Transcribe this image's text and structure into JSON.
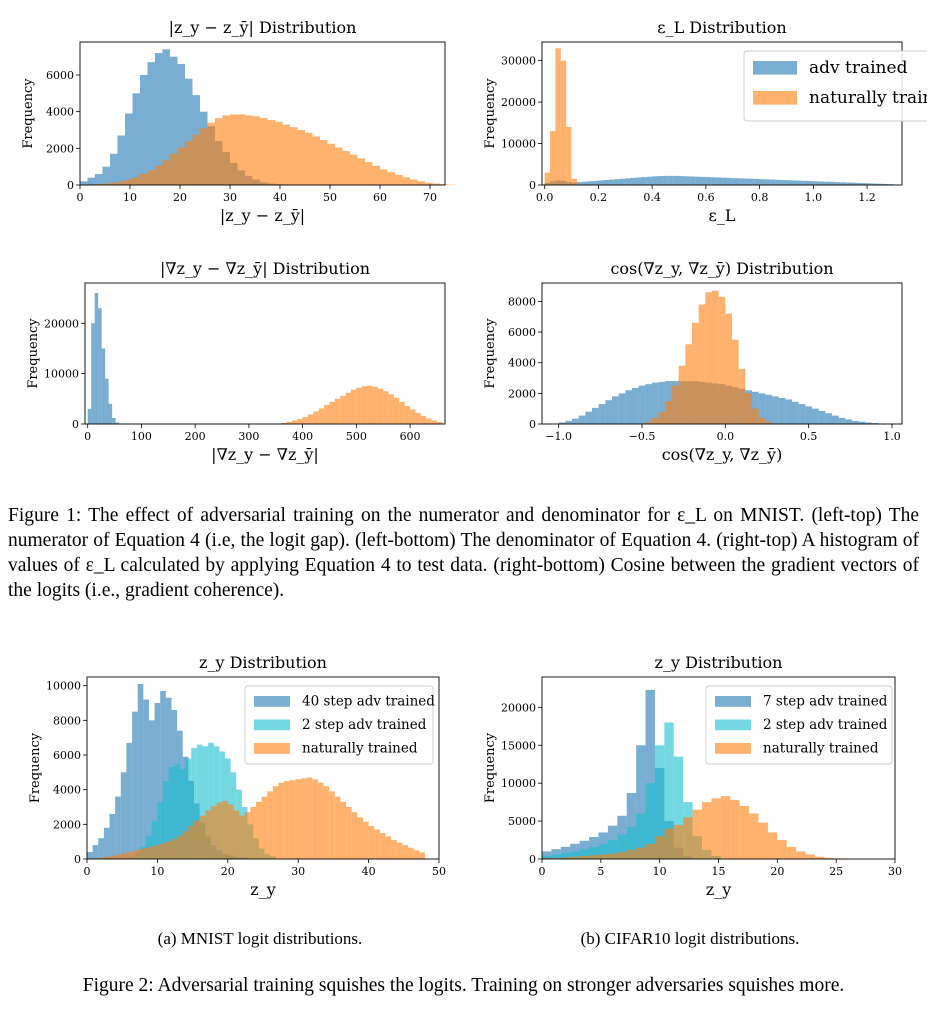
{
  "chart_data": [
    {
      "type": "histogram",
      "title": "|z_y − z_ȳ| Distribution",
      "xlabel": "|z_y − z_ȳ|",
      "ylabel": "Frequency",
      "xlim": [
        0,
        73
      ],
      "ylim": [
        0,
        7800
      ],
      "xticks": [
        0,
        10,
        20,
        30,
        40,
        50,
        60,
        70
      ],
      "yticks": [
        0,
        2000,
        4000,
        6000
      ],
      "legend": "none",
      "series": [
        {
          "name": "",
          "color": "#1f77b4",
          "alpha": 0.6,
          "bin_start": 0,
          "bin_width": 1.5,
          "values": [
            200,
            400,
            600,
            1000,
            1700,
            2700,
            3900,
            5000,
            6000,
            6700,
            7200,
            7400,
            7000,
            6600,
            5800,
            4900,
            4000,
            3200,
            2400,
            1800,
            1200,
            800,
            500,
            300,
            150,
            80,
            40,
            20,
            10
          ]
        },
        {
          "name": "",
          "color": "#ff7f0e",
          "alpha": 0.6,
          "bin_start": 0,
          "bin_width": 1.5,
          "values": [
            20,
            30,
            50,
            80,
            130,
            200,
            300,
            420,
            600,
            800,
            1050,
            1350,
            1700,
            2050,
            2400,
            2750,
            3100,
            3400,
            3650,
            3800,
            3850,
            3850,
            3800,
            3750,
            3650,
            3550,
            3450,
            3300,
            3150,
            3000,
            2850,
            2650,
            2450,
            2250,
            2050,
            1850,
            1650,
            1450,
            1250,
            1050,
            850,
            700,
            550,
            420,
            300,
            200,
            130,
            80,
            40,
            20
          ]
        }
      ]
    },
    {
      "type": "histogram",
      "title": "ε_L Distribution",
      "xlabel": "ε_L",
      "ylabel": "Frequency",
      "xlim": [
        -0.01,
        1.33
      ],
      "ylim": [
        0,
        34500
      ],
      "xticks": [
        0.0,
        0.2,
        0.4,
        0.6,
        0.8,
        1.0,
        1.2
      ],
      "xtick_labels": [
        "0.0",
        "0.2",
        "0.4",
        "0.6",
        "0.8",
        "1.0",
        "1.2"
      ],
      "yticks": [
        0,
        10000,
        20000,
        30000
      ],
      "legend": "top-right",
      "series": [
        {
          "name": "adv trained",
          "color": "#1f77b4",
          "alpha": 0.6,
          "bin_start": 0,
          "bin_width": 0.02,
          "values": [
            500,
            900,
            1100,
            1000,
            700,
            600,
            700,
            800,
            900,
            1000,
            1100,
            1200,
            1300,
            1400,
            1500,
            1600,
            1700,
            1800,
            1900,
            2000,
            2100,
            2150,
            2200,
            2200,
            2200,
            2150,
            2100,
            2050,
            2000,
            1950,
            1900,
            1850,
            1800,
            1750,
            1700,
            1650,
            1600,
            1550,
            1500,
            1450,
            1400,
            1350,
            1300,
            1250,
            1200,
            1150,
            1100,
            1050,
            1000,
            950,
            900,
            850,
            800,
            750,
            700,
            650,
            600,
            550,
            500,
            450,
            400,
            350,
            300,
            250,
            200
          ]
        },
        {
          "name": "naturally trained",
          "color": "#ff7f0e",
          "alpha": 0.6,
          "bin_start": 0,
          "bin_width": 0.02,
          "values": [
            3000,
            13000,
            33000,
            30000,
            14000,
            1500
          ]
        }
      ]
    },
    {
      "type": "histogram",
      "title": "|∇z_y − ∇z_ȳ| Distribution",
      "xlabel": "|∇z_y − ∇z_ȳ|",
      "ylabel": "Frequency",
      "xlim": [
        -5,
        665
      ],
      "ylim": [
        0,
        28000
      ],
      "xticks": [
        0,
        100,
        200,
        300,
        400,
        500,
        600
      ],
      "yticks": [
        0,
        10000,
        20000
      ],
      "legend": "none",
      "series": [
        {
          "name": "",
          "color": "#1f77b4",
          "alpha": 0.6,
          "bin_start": 0,
          "bin_width": 6.5,
          "values": [
            3000,
            20000,
            26000,
            23000,
            15000,
            9000,
            4000,
            1200,
            300
          ]
        },
        {
          "name": "",
          "color": "#ff7f0e",
          "alpha": 0.6,
          "bin_start": 360,
          "bin_width": 10,
          "values": [
            200,
            400,
            700,
            1000,
            1400,
            1900,
            2500,
            3100,
            3800,
            4400,
            5000,
            5600,
            6200,
            6800,
            7200,
            7500,
            7600,
            7400,
            7000,
            6500,
            5900,
            5200,
            4400,
            3600,
            2900,
            2200,
            1600,
            1100,
            700,
            400
          ]
        }
      ]
    },
    {
      "type": "histogram",
      "title": "cos(∇z_y, ∇z_ȳ) Distribution",
      "xlabel": "cos(∇z_y, ∇z_ȳ)",
      "ylabel": "Frequency",
      "xlim": [
        -1.1,
        1.06
      ],
      "ylim": [
        0,
        9200
      ],
      "xticks": [
        -1.0,
        -0.5,
        0.0,
        0.5,
        1.0
      ],
      "xtick_labels": [
        "−1.0",
        "−0.5",
        "0.0",
        "0.5",
        "1.0"
      ],
      "yticks": [
        0,
        2000,
        4000,
        6000,
        8000
      ],
      "legend": "none",
      "series": [
        {
          "name": "",
          "color": "#1f77b4",
          "alpha": 0.6,
          "bin_start": -1.0,
          "bin_width": 0.04,
          "values": [
            100,
            200,
            350,
            550,
            800,
            1050,
            1300,
            1550,
            1800,
            2000,
            2200,
            2350,
            2500,
            2600,
            2700,
            2750,
            2800,
            2800,
            2800,
            2800,
            2800,
            2750,
            2700,
            2650,
            2600,
            2500,
            2400,
            2300,
            2200,
            2100,
            2000,
            1900,
            1800,
            1700,
            1600,
            1450,
            1300,
            1150,
            1000,
            850,
            700,
            550,
            400,
            300,
            200,
            150,
            100,
            60
          ]
        },
        {
          "name": "",
          "color": "#ff7f0e",
          "alpha": 0.6,
          "bin_start": -0.48,
          "bin_width": 0.04,
          "values": [
            150,
            400,
            800,
            1500,
            2500,
            3800,
            5200,
            6600,
            7800,
            8600,
            8700,
            8300,
            7200,
            5500,
            3600,
            2000,
            1000,
            400,
            150
          ]
        }
      ]
    },
    {
      "type": "histogram",
      "title": "z_y Distribution",
      "xlabel": "z_y",
      "ylabel": "Frequency",
      "xlim": [
        0,
        50
      ],
      "ylim": [
        0,
        10500
      ],
      "xticks": [
        0,
        10,
        20,
        30,
        40,
        50
      ],
      "yticks": [
        0,
        2000,
        4000,
        6000,
        8000,
        10000
      ],
      "legend": "top-right",
      "series": [
        {
          "name": "40 step adv trained",
          "color": "#1f77b4",
          "alpha": 0.6,
          "bin_start": 0,
          "bin_width": 0.8,
          "values": [
            400,
            800,
            1200,
            1800,
            2600,
            3600,
            5000,
            6700,
            8500,
            10100,
            9200,
            8000,
            9000,
            9700,
            9300,
            8600,
            7400,
            5900,
            4500,
            3200,
            2100,
            1300,
            800,
            500,
            300,
            200,
            120,
            80,
            50,
            30
          ]
        },
        {
          "name": "2 step adv trained",
          "color": "#17becf",
          "alpha": 0.6,
          "bin_start": 6,
          "bin_width": 0.8,
          "values": [
            100,
            300,
            700,
            1300,
            2200,
            3300,
            4500,
            5300,
            5500,
            5200,
            5800,
            6400,
            6600,
            6500,
            6700,
            6500,
            6200,
            5800,
            5000,
            4000,
            3000,
            2000,
            1200,
            600,
            300,
            150
          ]
        },
        {
          "name": "naturally trained",
          "color": "#ff7f0e",
          "alpha": 0.6,
          "bin_start": 0,
          "bin_width": 0.8,
          "values": [
            20,
            40,
            80,
            120,
            180,
            250,
            320,
            400,
            480,
            560,
            640,
            720,
            800,
            900,
            1000,
            1150,
            1350,
            1600,
            1900,
            2200,
            2500,
            2800,
            3050,
            3250,
            3350,
            3150,
            2800,
            2500,
            2700,
            3000,
            3300,
            3600,
            3900,
            4200,
            4400,
            4500,
            4550,
            4600,
            4650,
            4700,
            4600,
            4400,
            4200,
            3900,
            3600,
            3300,
            3000,
            2700,
            2400,
            2150,
            1900,
            1700,
            1500,
            1300,
            1100,
            950,
            800,
            650,
            500,
            380
          ]
        }
      ]
    },
    {
      "type": "histogram",
      "title": "z_y Distribution",
      "xlabel": "z_y",
      "ylabel": "Frequency",
      "xlim": [
        0,
        30
      ],
      "ylim": [
        0,
        24000
      ],
      "xticks": [
        0,
        5,
        10,
        15,
        20,
        25,
        30
      ],
      "yticks": [
        0,
        5000,
        10000,
        15000,
        20000
      ],
      "legend": "top-right",
      "series": [
        {
          "name": "7 step adv trained",
          "color": "#1f77b4",
          "alpha": 0.6,
          "bin_start": 0,
          "bin_width": 0.8,
          "values": [
            1000,
            1300,
            1600,
            2000,
            2400,
            2900,
            3500,
            4400,
            5700,
            8700,
            15000,
            22300,
            12000,
            5000,
            1500,
            400
          ]
        },
        {
          "name": "2 step adv trained",
          "color": "#17becf",
          "alpha": 0.6,
          "bin_start": 0,
          "bin_width": 0.8,
          "values": [
            400,
            600,
            800,
            1000,
            1300,
            1600,
            2000,
            2500,
            3200,
            4200,
            6000,
            10000,
            15000,
            18000,
            13500,
            7500,
            3000,
            1200,
            400
          ]
        },
        {
          "name": "naturally trained",
          "color": "#ff7f0e",
          "alpha": 0.6,
          "bin_start": 0,
          "bin_width": 0.8,
          "values": [
            100,
            150,
            200,
            300,
            400,
            500,
            600,
            700,
            900,
            1200,
            1500,
            2000,
            3000,
            4000,
            4500,
            5500,
            6500,
            7500,
            8000,
            8300,
            7800,
            7000,
            6000,
            4800,
            3500,
            2500,
            1600,
            1000,
            600,
            300,
            150,
            80,
            40
          ]
        }
      ]
    }
  ],
  "captions": {
    "figure1": "Figure 1: The effect of adversarial training on the numerator and denominator for ε_L on MNIST. (left-top) The numerator of Equation 4 (i.e, the logit gap). (left-bottom) The denominator of Equation 4.  (right-top) A histogram of values of ε_L calculated by applying Equation 4 to test data. (right-bottom) Cosine between the gradient vectors of the logits (i.e., gradient coherence).",
    "subfig_a": "(a) MNIST logit distributions.",
    "subfig_b": "(b) CIFAR10 logit distributions.",
    "figure2": "Figure 2: Adversarial training squishes the logits. Training on stronger adversaries squishes more."
  }
}
